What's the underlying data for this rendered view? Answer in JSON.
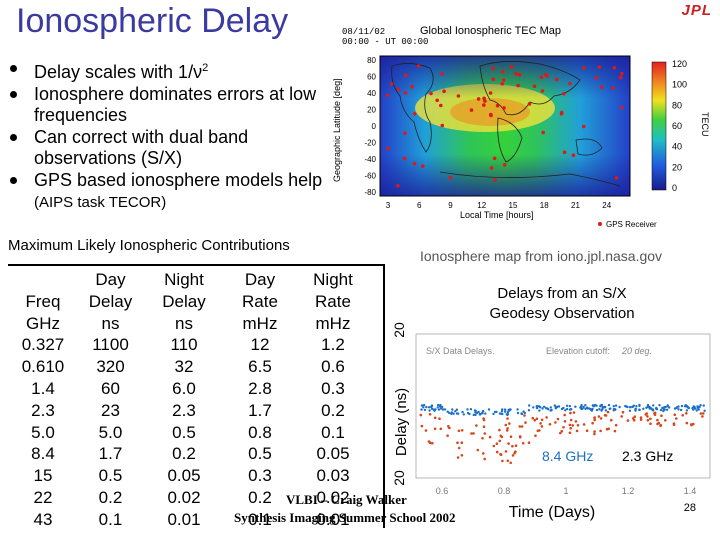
{
  "header": {
    "title": "Ionospheric Delay",
    "logo_text": "JPL"
  },
  "bullets": [
    {
      "text": "Delay scales with 1/ν",
      "sup": "2",
      "small": ""
    },
    {
      "text": "Ionosphere dominates errors at low frequencies",
      "sup": "",
      "small": ""
    },
    {
      "text": "Can correct with dual band observations (S/X)",
      "sup": "",
      "small": ""
    },
    {
      "text": "GPS based ionosphere models help ",
      "sup": "",
      "small": "(AIPS task TECOR)"
    }
  ],
  "tec_map": {
    "date": "08/11/02",
    "time_label": "00:00 - UT 00:00",
    "title": "Global Ionospheric TEC Map",
    "ylabel": "Geographic Latitude [deg]",
    "yticks": [
      "80",
      "60",
      "40",
      "20",
      "0",
      "-20",
      "-40",
      "-60",
      "-80"
    ],
    "xlabel": "Local Time [hours]",
    "xticks": [
      "3",
      "6",
      "9",
      "12",
      "15",
      "18",
      "21",
      "24"
    ],
    "colorbar_ticks": [
      "120",
      "100",
      "80",
      "60",
      "40",
      "20",
      "0"
    ],
    "colorbar_label": "TECU",
    "legend": "GPS Receiver"
  },
  "table": {
    "caption": "Maximum Likely Ionospheric Contributions",
    "columns": [
      {
        "lines": [
          "Freq",
          "GHz"
        ],
        "values": [
          "0.327",
          "0.610",
          "1.4",
          "2.3",
          "5.0",
          "8.4",
          "15",
          "22",
          "43"
        ]
      },
      {
        "lines": [
          "Day",
          "Delay",
          "ns"
        ],
        "values": [
          "1100",
          "320",
          "60",
          "23",
          "5.0",
          "1.7",
          "0.5",
          "0.2",
          "0.1"
        ]
      },
      {
        "lines": [
          "Night",
          "Delay",
          "ns"
        ],
        "values": [
          "110",
          "32",
          "6.0",
          "2.3",
          "0.5",
          "0.2",
          "0.05",
          "0.02",
          "0.01"
        ]
      },
      {
        "lines": [
          "Day",
          "Rate",
          "mHz"
        ],
        "values": [
          "12",
          "6.5",
          "2.8",
          "1.7",
          "0.8",
          "0.5",
          "0.3",
          "0.2",
          "0.1"
        ]
      },
      {
        "lines": [
          "Night",
          "Rate",
          "mHz"
        ],
        "values": [
          "1.2",
          "0.6",
          "0.3",
          "0.2",
          "0.1",
          "0.05",
          "0.03",
          "0.02",
          "0.01"
        ]
      }
    ]
  },
  "map_credit": "Ionosphere map from iono.jpl.nasa.gov",
  "delay_plot": {
    "title_lines": [
      "Delays from an S/X",
      "Geodesy Observation"
    ],
    "inset_label": "S/X Data Delays.",
    "elevation_label": "Elevation cutoff:",
    "elevation_value": "20 deg.",
    "ylabel": "Delay (ns)",
    "ytick_top": "20",
    "ytick_bottom": "20",
    "xlabel": "Time (Days)",
    "xticks": [
      "0.6",
      "0.8",
      "1",
      "1.2",
      "1.4"
    ],
    "series": [
      {
        "name": "8.4 GHz",
        "color": "#1c6fc8"
      },
      {
        "name": "2.3 GHz",
        "color": "#d8461c"
      }
    ]
  },
  "footer": {
    "line1": "VLBI – Craig Walker",
    "line2": "Synthesis Imaging Summer School 2002",
    "slide_number": "28"
  }
}
